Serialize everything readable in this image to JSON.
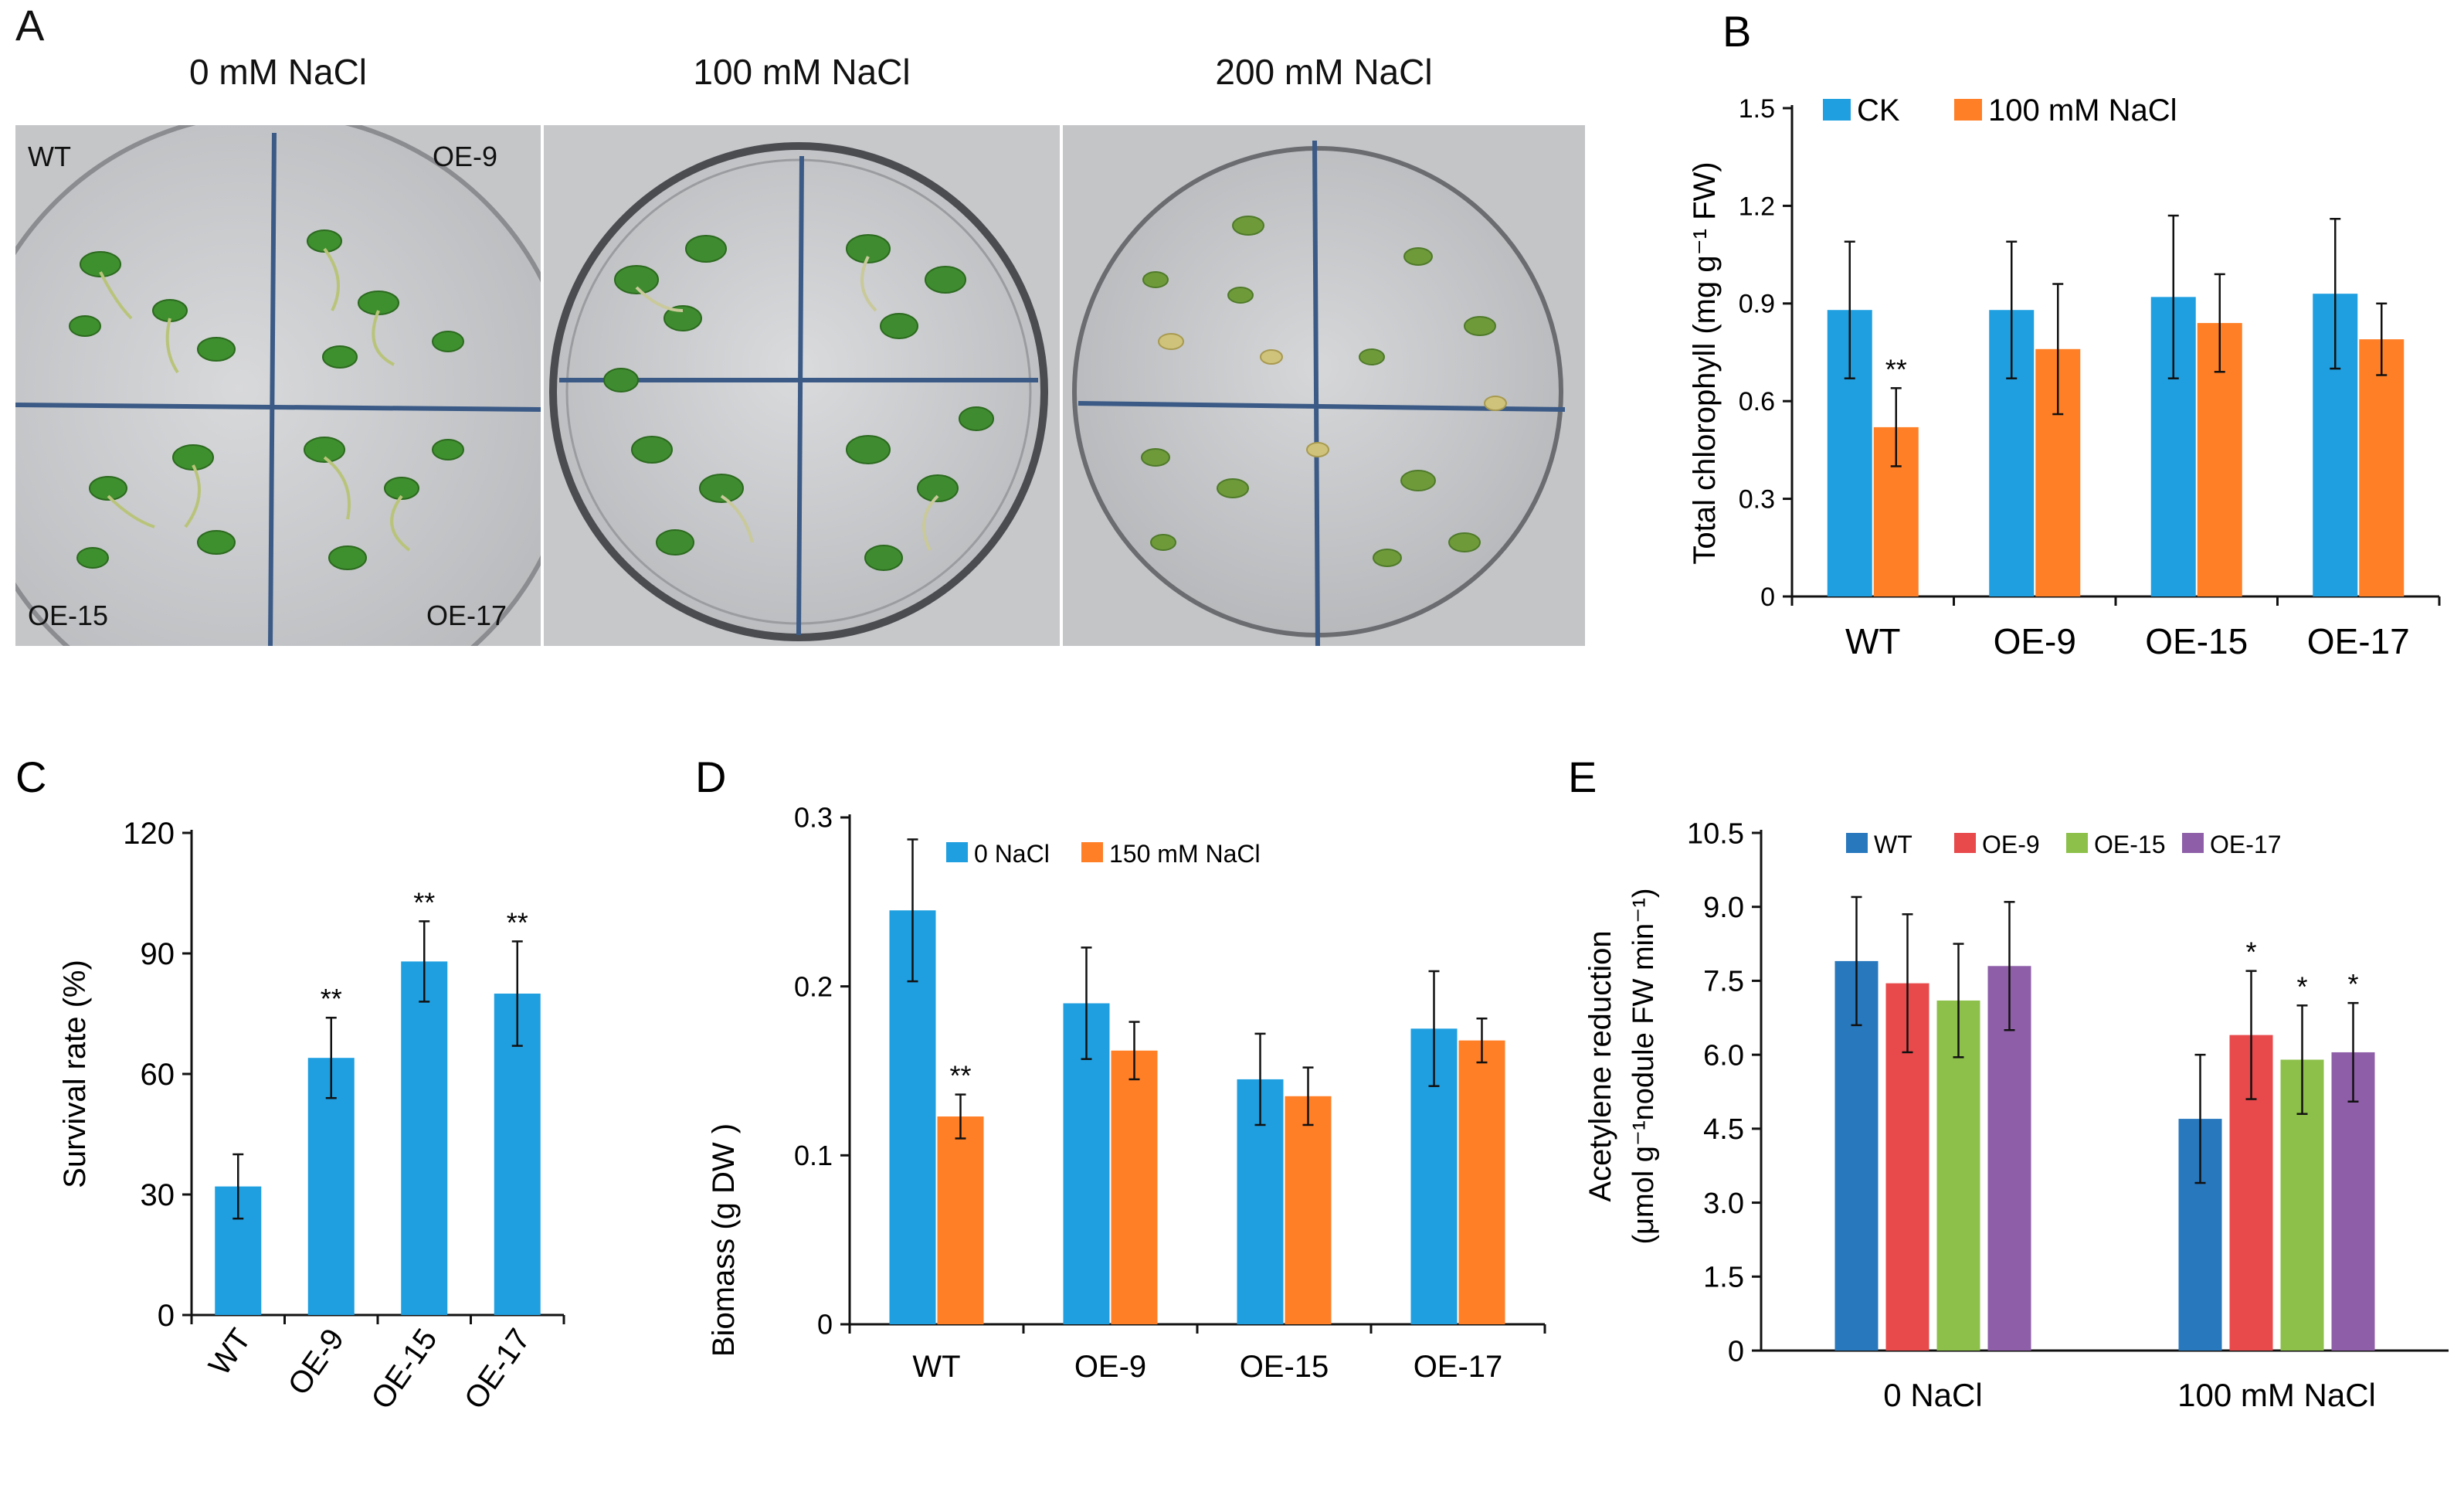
{
  "panel_a": {
    "letter": "A",
    "conditions": [
      "0 mM NaCl",
      "100 mM NaCl",
      "200 mM NaCl"
    ],
    "quadrant_labels": {
      "top_left": "WT",
      "top_right": "OE-9",
      "bottom_left": "OE-15",
      "bottom_right": "OE-17"
    }
  },
  "colors": {
    "blue": "#1f9fe0",
    "orange": "#ff7f27",
    "wt": "#2878be",
    "oe9": "#e8494b",
    "oe15": "#8cc04a",
    "oe17": "#8e5fa8"
  },
  "chart_data": [
    {
      "id": "B",
      "letter": "B",
      "type": "bar",
      "categories": [
        "WT",
        "OE-9",
        "OE-15",
        "OE-17"
      ],
      "series": [
        {
          "name": "CK",
          "values": [
            0.88,
            0.88,
            0.92,
            0.93
          ],
          "errors": [
            0.21,
            0.21,
            0.25,
            0.23
          ]
        },
        {
          "name": "100 mM NaCl",
          "values": [
            0.52,
            0.76,
            0.84,
            0.79
          ],
          "errors": [
            0.12,
            0.2,
            0.15,
            0.11
          ]
        }
      ],
      "significance": [
        [
          "",
          "**"
        ],
        [
          "",
          ""
        ],
        [
          "",
          ""
        ],
        [
          "",
          ""
        ]
      ],
      "ylabel": "Total chlorophyll (mg g⁻¹ FW)",
      "ylim": [
        0,
        1.5
      ],
      "yticks": [
        0,
        0.3,
        0.6,
        0.9,
        1.2,
        1.5
      ],
      "ytick_labels": [
        "0",
        "0.3",
        "0.6",
        "0.9",
        "1.2",
        "1.5"
      ],
      "legend_position": "top-left"
    },
    {
      "id": "C",
      "letter": "C",
      "type": "bar",
      "categories": [
        "WT",
        "OE-9",
        "OE-15",
        "OE-17"
      ],
      "series": [
        {
          "name": "Survival rate",
          "values": [
            32,
            64,
            88,
            80
          ],
          "errors": [
            8,
            10,
            10,
            13
          ]
        }
      ],
      "significance": [
        [
          ""
        ],
        [
          "**"
        ],
        [
          "**"
        ],
        [
          "**"
        ]
      ],
      "ylabel": "Survival rate (%)",
      "ylim": [
        0,
        120
      ],
      "yticks": [
        0,
        30,
        60,
        90,
        120
      ],
      "ytick_labels": [
        "0",
        "30",
        "60",
        "90",
        "120"
      ],
      "xtick_rotation": "rotated -45"
    },
    {
      "id": "D",
      "letter": "D",
      "type": "bar",
      "categories": [
        "WT",
        "OE-9",
        "OE-15",
        "OE-17"
      ],
      "series": [
        {
          "name": "0 NaCl",
          "values": [
            0.245,
            0.19,
            0.145,
            0.175
          ],
          "errors": [
            0.042,
            0.033,
            0.027,
            0.034
          ]
        },
        {
          "name": "150 mM NaCl",
          "values": [
            0.123,
            0.162,
            0.135,
            0.168
          ],
          "errors": [
            0.013,
            0.017,
            0.017,
            0.013
          ]
        }
      ],
      "significance": [
        [
          "",
          "**"
        ],
        [
          "",
          ""
        ],
        [
          "",
          ""
        ],
        [
          "",
          ""
        ]
      ],
      "ylabel": "Biomass (g DW )",
      "ylim": [
        0,
        0.3
      ],
      "yticks": [
        0,
        0.1,
        0.2,
        0.3
      ],
      "ytick_labels": [
        "0",
        "0.1",
        "0.2",
        "0.3"
      ],
      "legend_position": "top-center"
    },
    {
      "id": "E",
      "letter": "E",
      "type": "bar",
      "categories": [
        "0 NaCl",
        "100 mM NaCl"
      ],
      "series": [
        {
          "name": "WT",
          "values": [
            7.9,
            4.7
          ],
          "errors": [
            1.3,
            1.3
          ]
        },
        {
          "name": "OE-9",
          "values": [
            7.45,
            6.4
          ],
          "errors": [
            1.4,
            1.3
          ]
        },
        {
          "name": "OE-15",
          "values": [
            7.1,
            5.9
          ],
          "errors": [
            1.15,
            1.1
          ]
        },
        {
          "name": "OE-17",
          "values": [
            7.8,
            6.05
          ],
          "errors": [
            1.3,
            1.0
          ]
        }
      ],
      "significance": [
        [
          "",
          "",
          "",
          ""
        ],
        [
          "",
          "*",
          "*",
          "*"
        ]
      ],
      "ylabel_line1": "Acetylene reduction",
      "ylabel_line2": "(μmol g⁻¹nodule FW min⁻¹)",
      "ylim": [
        0,
        10.5
      ],
      "yticks": [
        0,
        1.5,
        3,
        4.5,
        6,
        7.5,
        9,
        10.5
      ],
      "ytick_labels": [
        "0",
        "1.5",
        "3.0",
        "4.5",
        "6.0",
        "7.5",
        "9.0",
        "10.5"
      ],
      "legend_position": "top"
    }
  ]
}
